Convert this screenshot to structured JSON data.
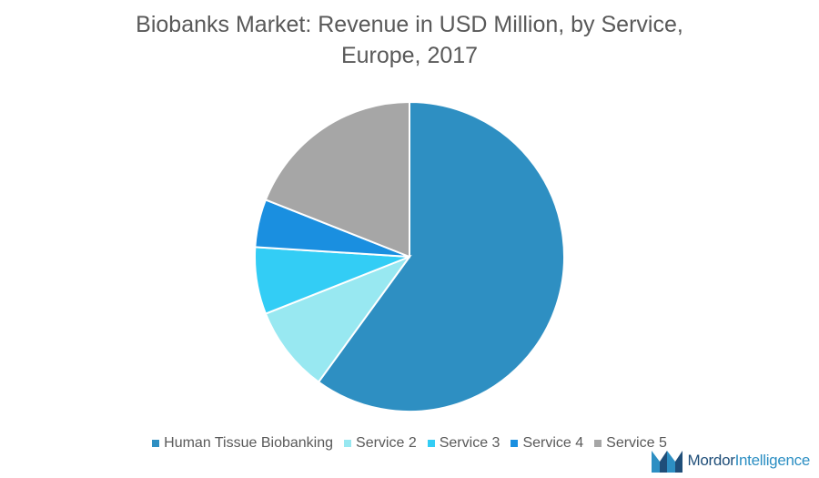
{
  "title_line1": "Biobanks Market: Revenue in USD Million, by Service,",
  "title_line2": "Europe, 2017",
  "chart_data": {
    "type": "pie",
    "title": "Biobanks Market: Revenue in USD Million, by Service, Europe, 2017",
    "slices": [
      {
        "label": "Human Tissue Biobanking",
        "value": 60,
        "color": "#2e8fc2"
      },
      {
        "label": "Service 2",
        "value": 9,
        "color": "#98e8f1"
      },
      {
        "label": "Service 3",
        "value": 7,
        "color": "#33cdf5"
      },
      {
        "label": "Service 4",
        "value": 5,
        "color": "#1a8fe0"
      },
      {
        "label": "Service 5",
        "value": 19,
        "color": "#a6a6a6"
      }
    ],
    "start_angle_deg": 0,
    "direction": "clockwise",
    "legend_position": "bottom"
  },
  "logo": {
    "name_part1": "Mordor",
    "name_part2": "Intelligence"
  }
}
